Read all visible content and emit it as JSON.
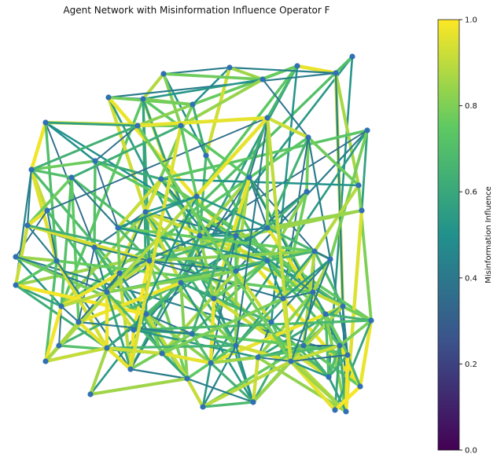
{
  "title": "Agent Network with Misinformation Influence Operator F",
  "colorbar": {
    "label": "Misinformation Influence",
    "ticks": [
      "0.0",
      "0.2",
      "0.4",
      "0.6",
      "0.8",
      "1.0"
    ],
    "colormap": "viridis",
    "colormap_stops": [
      "#440154",
      "#3b528b",
      "#21918c",
      "#5ec962",
      "#fde725"
    ]
  },
  "network": {
    "node_color": "#2f6fb3",
    "edge_weight_range": [
      0,
      1
    ]
  }
}
